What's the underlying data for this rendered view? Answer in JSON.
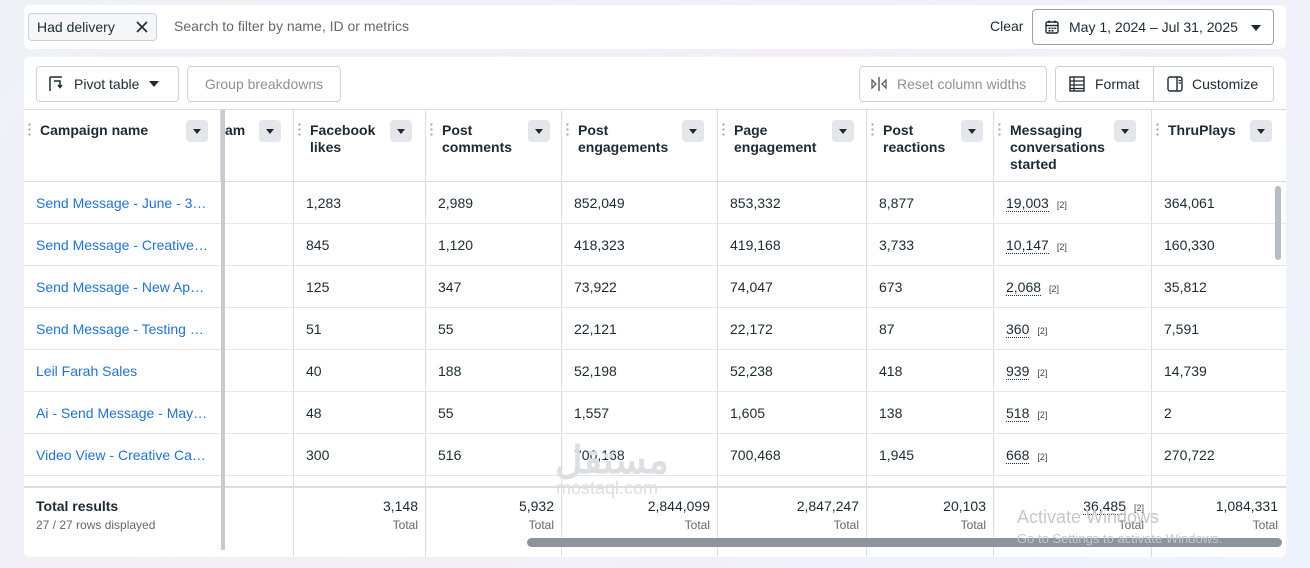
{
  "filters": {
    "chip_label": "Had delivery",
    "search_placeholder": "Search to filter by name, ID or metrics",
    "clear_label": "Clear",
    "date_range": "May 1, 2024 – Jul 31, 2025"
  },
  "toolbar": {
    "pivot_label": "Pivot table",
    "group_label": "Group breakdowns",
    "reset_label": "Reset column widths",
    "format_label": "Format",
    "customize_label": "Customize"
  },
  "columns": [
    {
      "label": "Campaign name"
    },
    {
      "label": "am"
    },
    {
      "label": "Facebook likes"
    },
    {
      "label": "Post comments"
    },
    {
      "label": "Post engagements"
    },
    {
      "label": "Page engagement"
    },
    {
      "label": "Post reactions"
    },
    {
      "label": "Messaging conversations started"
    },
    {
      "label": "ThruPlays"
    }
  ],
  "header_lines": {
    "c2": [
      "Facebook",
      "likes"
    ],
    "c3": [
      "Post",
      "comments"
    ],
    "c4": [
      "Post",
      "engagements"
    ],
    "c5": [
      "Page",
      "engagement"
    ],
    "c6": [
      "Post",
      "reactions"
    ],
    "c7": [
      "Messaging",
      "conversations",
      "started"
    ]
  },
  "rows": [
    {
      "name": "Send Message - June - 3…",
      "likes": "1,283",
      "comments": "2,989",
      "post_eng": "852,049",
      "page_eng": "853,332",
      "reactions": "8,877",
      "messaging": "19,003",
      "messaging_note": "[2]",
      "thruplays": "364,061"
    },
    {
      "name": "Send Message - Creative…",
      "likes": "845",
      "comments": "1,120",
      "post_eng": "418,323",
      "page_eng": "419,168",
      "reactions": "3,733",
      "messaging": "10,147",
      "messaging_note": "[2]",
      "thruplays": "160,330"
    },
    {
      "name": "Send Message - New Ap…",
      "likes": "125",
      "comments": "347",
      "post_eng": "73,922",
      "page_eng": "74,047",
      "reactions": "673",
      "messaging": "2,068",
      "messaging_note": "[2]",
      "thruplays": "35,812"
    },
    {
      "name": "Send Message - Testing …",
      "likes": "51",
      "comments": "55",
      "post_eng": "22,121",
      "page_eng": "22,172",
      "reactions": "87",
      "messaging": "360",
      "messaging_note": "[2]",
      "thruplays": "7,591"
    },
    {
      "name": "Leil Farah Sales",
      "likes": "40",
      "comments": "188",
      "post_eng": "52,198",
      "page_eng": "52,238",
      "reactions": "418",
      "messaging": "939",
      "messaging_note": "[2]",
      "thruplays": "14,739"
    },
    {
      "name": "Ai - Send Message - May…",
      "likes": "48",
      "comments": "55",
      "post_eng": "1,557",
      "page_eng": "1,605",
      "reactions": "138",
      "messaging": "518",
      "messaging_note": "[2]",
      "thruplays": "2"
    },
    {
      "name": "Video View - Creative Ca…",
      "likes": "300",
      "comments": "516",
      "post_eng": "700,168",
      "page_eng": "700,468",
      "reactions": "1,945",
      "messaging": "668",
      "messaging_note": "[2]",
      "thruplays": "270,722"
    }
  ],
  "totals": {
    "label": "Total results",
    "rows_displayed": "27 / 27 rows displayed",
    "sub": "Total",
    "likes": "3,148",
    "comments": "5,932",
    "post_eng": "2,844,099",
    "page_eng": "2,847,247",
    "reactions": "20,103",
    "messaging": "36,485",
    "messaging_note": "[2]",
    "thruplays": "1,084,331"
  },
  "overlays": {
    "activate_title": "Activate Windows",
    "activate_sub": "Go to Settings to activate Windows.",
    "wm_logo": "مستقل",
    "wm_site": "mostaql.com"
  },
  "icons": [
    "close-icon",
    "calendar-icon",
    "chevron-down-icon",
    "pivot-icon",
    "reset-columns-icon",
    "format-icon",
    "customize-icon"
  ]
}
